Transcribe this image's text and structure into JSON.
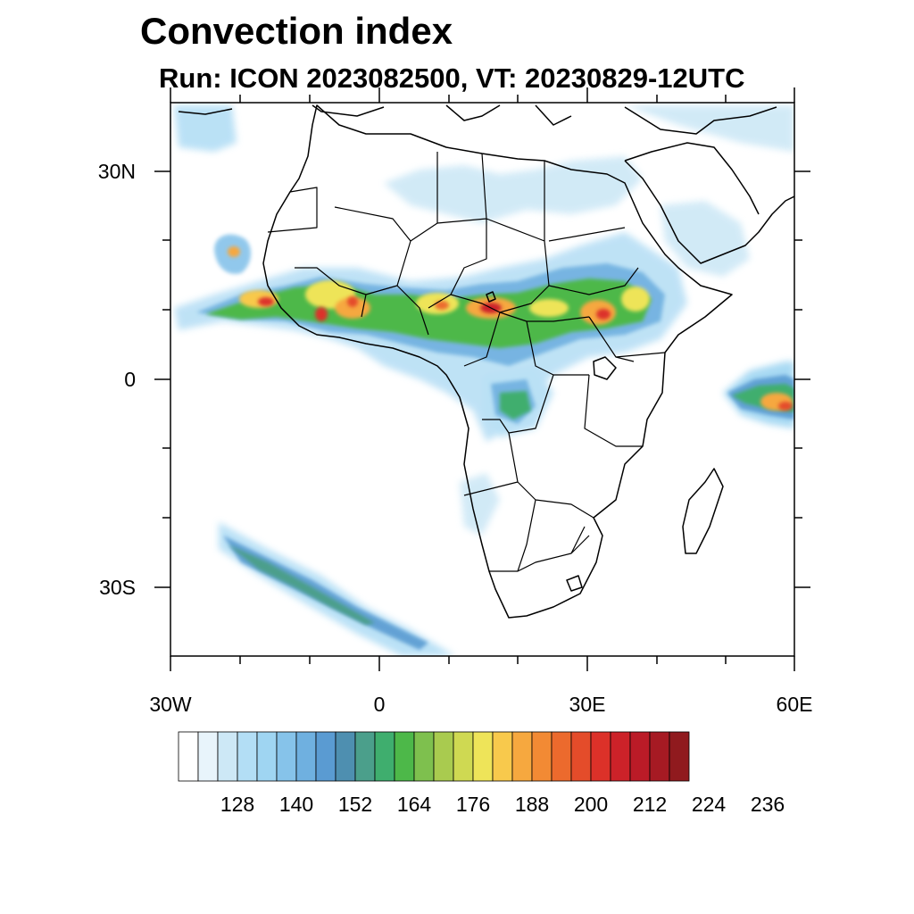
{
  "header": {
    "title": "Convection index",
    "subtitle": "Run: ICON 2023082500,  VT: 20230829-12UTC"
  },
  "map": {
    "lat_labels": [
      "30N",
      "0",
      "30S"
    ],
    "lon_labels": [
      "30W",
      "0",
      "30E",
      "60E"
    ],
    "lon_range_deg": [
      -30,
      60
    ],
    "lat_range_deg": [
      -40,
      40
    ],
    "features": [
      "tropical-convection-band-west-africa",
      "tropical-convection-band-central-africa",
      "convection-ethiopian-highlands",
      "convection-indian-ocean-equator",
      "frontal-band-south-atlantic",
      "cyclone-off-west-africa"
    ]
  },
  "colorbar": {
    "labels": [
      "128",
      "140",
      "152",
      "164",
      "176",
      "188",
      "200",
      "212",
      "224",
      "236"
    ],
    "colors": [
      "#ffffff",
      "#e8f4fb",
      "#cde8f6",
      "#b3def5",
      "#9fd5f2",
      "#86c3ea",
      "#6fb0e0",
      "#5a9bd2",
      "#4e8fb0",
      "#4b9f8b",
      "#3fae6e",
      "#4db849",
      "#7ec04e",
      "#a9cb4f",
      "#cfd952",
      "#eee459",
      "#f8c94c",
      "#f6a83f",
      "#f28a34",
      "#ec6a2d",
      "#e44c2a",
      "#dc3129",
      "#cc2229",
      "#bb1b27",
      "#a61a23",
      "#901a1e"
    ]
  }
}
